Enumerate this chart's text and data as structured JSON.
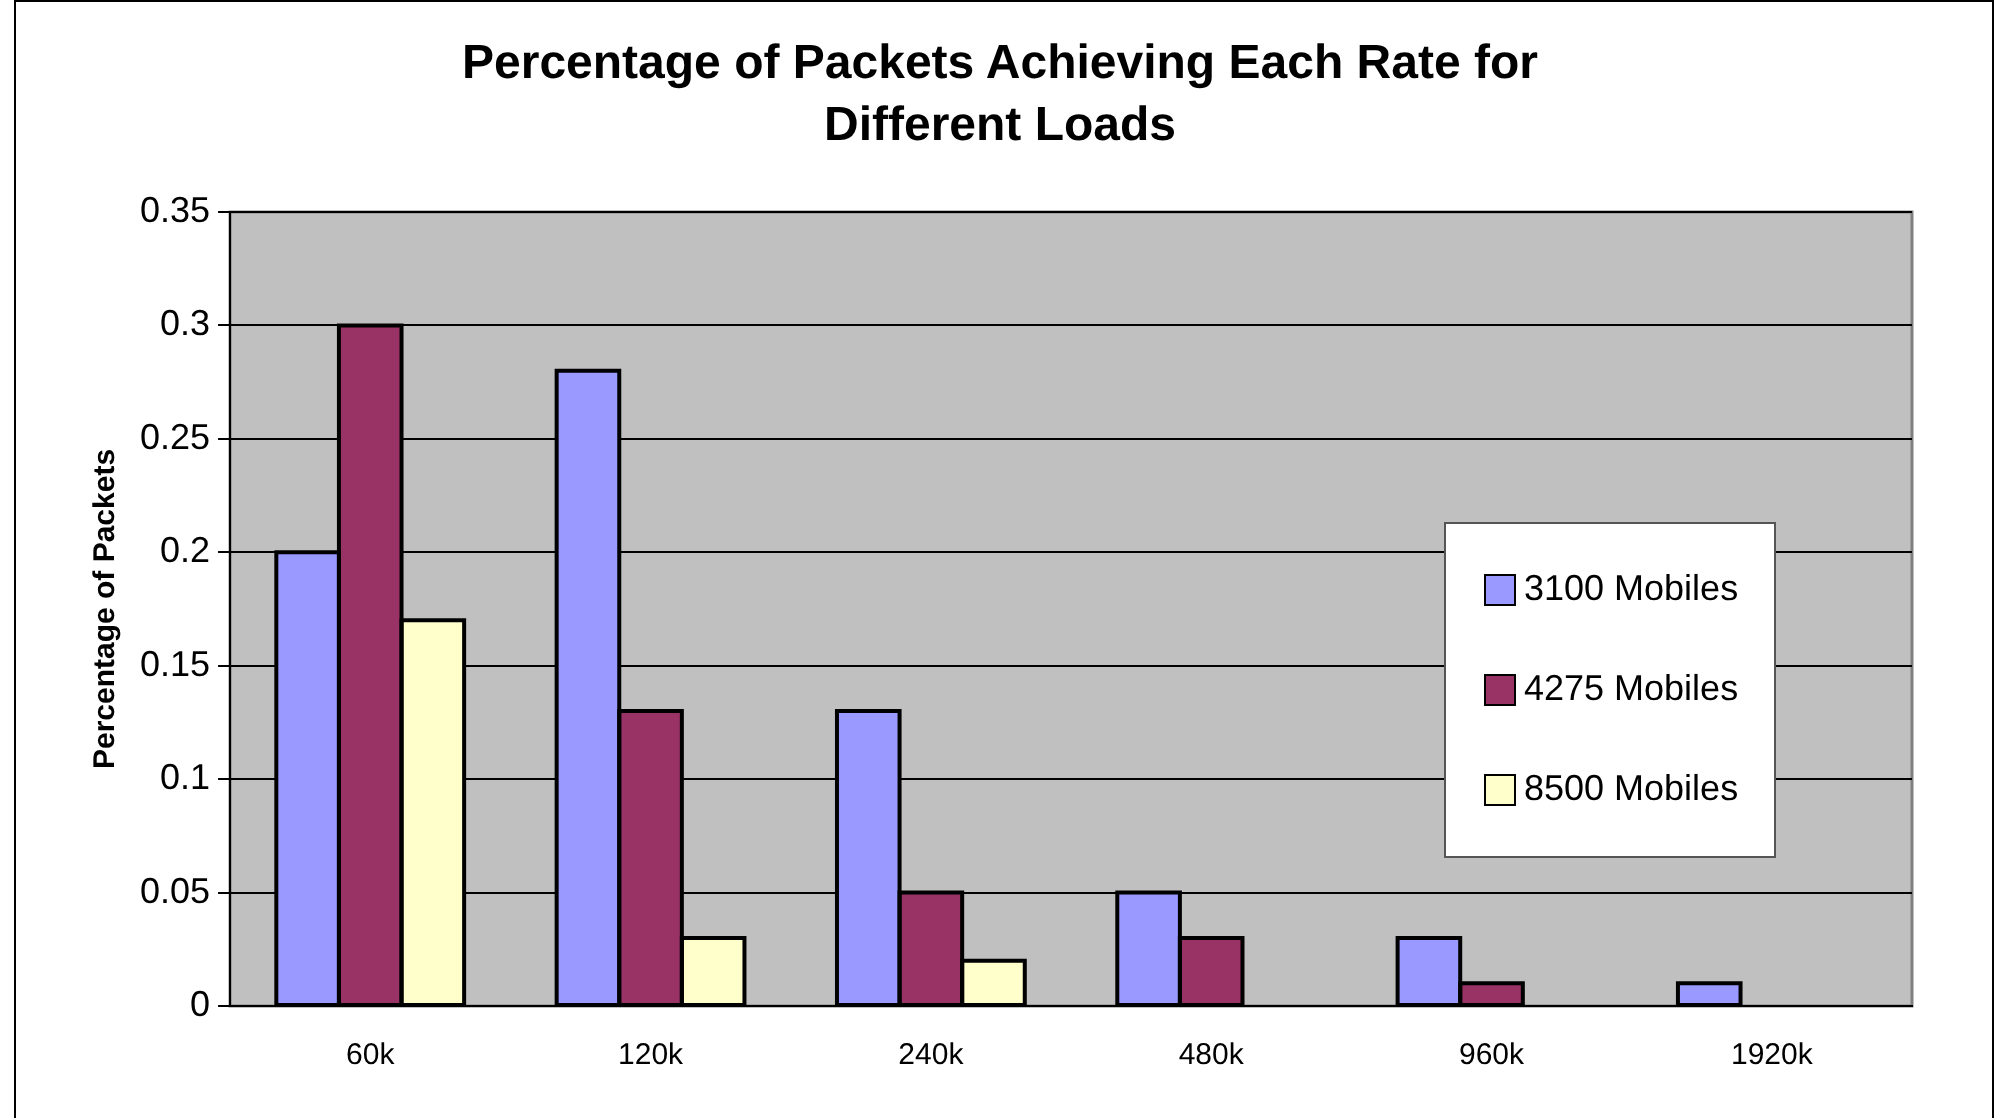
{
  "chart_data": {
    "type": "bar",
    "title": "Percentage of Packets Achieving Each Rate for Different Loads",
    "ylabel": "Percentage of Packets",
    "categories": [
      "60k",
      "120k",
      "240k",
      "480k",
      "960k",
      "1920k"
    ],
    "series": [
      {
        "name": "3100 Mobiles",
        "color": "#9999ff",
        "values": [
          0.2,
          0.28,
          0.13,
          0.05,
          0.03,
          0.01
        ]
      },
      {
        "name": "4275 Mobiles",
        "color": "#993366",
        "values": [
          0.3,
          0.13,
          0.05,
          0.03,
          0.01,
          0
        ]
      },
      {
        "name": "8500 Mobiles",
        "color": "#ffffcc",
        "values": [
          0.17,
          0.03,
          0.02,
          0,
          0,
          0
        ]
      }
    ],
    "ylim": [
      0,
      0.35
    ],
    "yticks": [
      0,
      0.05,
      0.1,
      0.15,
      0.2,
      0.25,
      0.3,
      0.35
    ],
    "grid": "y",
    "legend": "right"
  }
}
